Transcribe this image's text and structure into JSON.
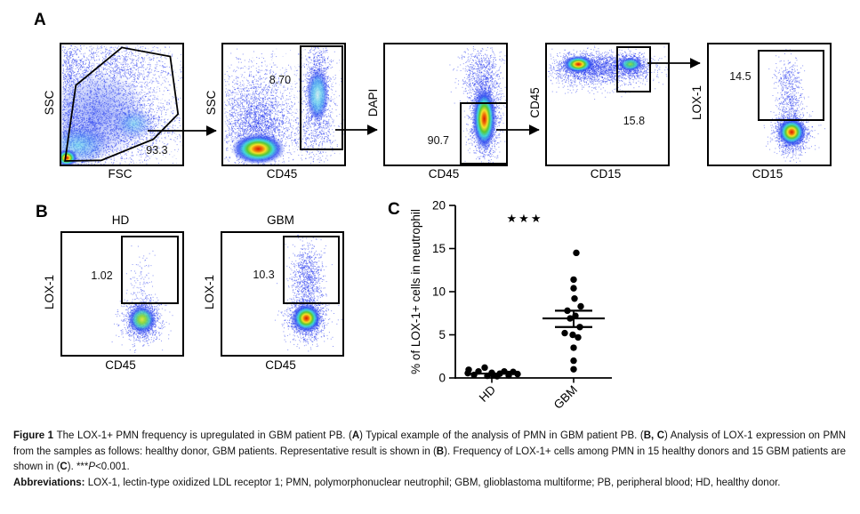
{
  "panels": {
    "a": {
      "label": "A",
      "plots": [
        {
          "id": "a1",
          "ylabel": "SSC",
          "xlabel": "FSC",
          "gate_value": "93.3"
        },
        {
          "id": "a2",
          "ylabel": "SSC",
          "xlabel": "CD45",
          "gate_value": "8.70"
        },
        {
          "id": "a3",
          "ylabel": "DAPI",
          "xlabel": "CD45",
          "gate_value": "90.7"
        },
        {
          "id": "a4",
          "ylabel": "CD45",
          "xlabel": "CD15",
          "gate_value": "15.8"
        },
        {
          "id": "a5",
          "ylabel": "LOX-1",
          "xlabel": "CD15",
          "gate_value": "14.5"
        }
      ]
    },
    "b": {
      "label": "B",
      "plots": [
        {
          "id": "b1",
          "title": "HD",
          "ylabel": "LOX-1",
          "xlabel": "CD45",
          "gate_value": "1.02"
        },
        {
          "id": "b2",
          "title": "GBM",
          "ylabel": "LOX-1",
          "xlabel": "CD45",
          "gate_value": "10.3"
        }
      ]
    },
    "c": {
      "label": "C"
    }
  },
  "chart_data": {
    "type": "scatter",
    "categories": [
      "HD",
      "GBM"
    ],
    "series": [
      {
        "name": "HD",
        "values": [
          1.2,
          0.95,
          0.75,
          0.75,
          0.7,
          0.6,
          0.55,
          0.5,
          0.45,
          0.45,
          0.35,
          0.3,
          0.3,
          0.25,
          0.2
        ],
        "mean": 0.5
      },
      {
        "name": "GBM",
        "values": [
          14.5,
          11.4,
          10.4,
          9.2,
          8.3,
          7.8,
          7.2,
          6.9,
          5.9,
          5.2,
          5.0,
          4.7,
          3.5,
          2.0,
          1.0
        ],
        "mean": 6.9,
        "sem_upper": 7.8,
        "sem_lower": 5.9
      }
    ],
    "ylabel": "% of LOX-1+ cells in neutrophil",
    "ylim": [
      0,
      20
    ],
    "yticks": [
      0,
      5,
      10,
      15,
      20
    ],
    "significance": "***",
    "significance_glyph": "★★★",
    "grid": false,
    "legend": "none"
  },
  "flow_colors": {
    "density_blue": "#2d4bf0",
    "hot_core_red": "#d41a05",
    "warm_yellow": "#f4e128",
    "green": "#5ac832",
    "cyan": "#3cd9d8"
  },
  "caption": {
    "p1": [
      {
        "t": "Figure 1 ",
        "b": 1
      },
      {
        "t": "The LOX-1+ PMN frequency is upregulated in GBM patient PB. ("
      },
      {
        "t": "A",
        "b": 1
      },
      {
        "t": ") Typical example of the analysis of PMN in GBM patient PB. ("
      },
      {
        "t": "B, C",
        "b": 1
      },
      {
        "t": ") Analysis of LOX-1 expression on PMN from the samples as follows: healthy donor, GBM patients. Representative result is shown in ("
      },
      {
        "t": "B",
        "b": 1
      },
      {
        "t": "). Frequency of LOX-1+ cells among PMN in 15 healthy donors and 15 GBM patients are shown in ("
      },
      {
        "t": "C",
        "b": 1
      },
      {
        "t": "). ***"
      },
      {
        "t": "P",
        "i": 1
      },
      {
        "t": "<0.001."
      }
    ],
    "p2": [
      {
        "t": "Abbreviations: ",
        "b": 1
      },
      {
        "t": "LOX-1, lectin-type oxidized LDL receptor 1; PMN, polymorphonuclear neutrophil; GBM, glioblastoma multiforme; PB, peripheral blood; HD, healthy donor."
      }
    ]
  }
}
